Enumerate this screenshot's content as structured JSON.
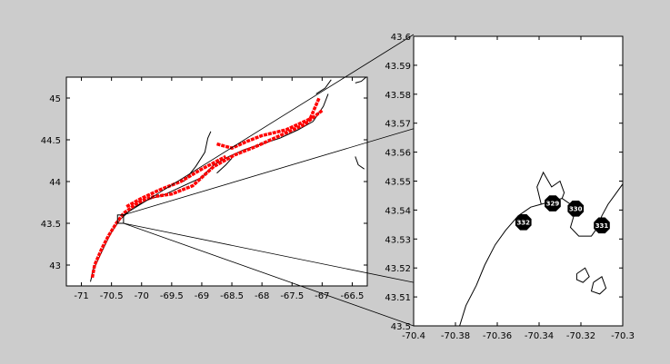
{
  "chart_data": [
    {
      "type": "map",
      "panel": "overview",
      "xlim": [
        -71.25,
        -66.25
      ],
      "ylim": [
        42.75,
        45.25
      ],
      "xticks": [
        -71,
        -70.5,
        -70,
        -69.5,
        -69,
        -68.5,
        -68,
        -67.5,
        -67,
        -66.5
      ],
      "xtick_labels": [
        "-71",
        "-70.5",
        "-70",
        "-69.5",
        "-69",
        "-68.5",
        "-68",
        "-67.5",
        "-67",
        "-66.5"
      ],
      "yticks": [
        43,
        43.5,
        44,
        44.5,
        45
      ],
      "ytick_labels": [
        "43",
        "43.5",
        "44",
        "44.5",
        "45"
      ],
      "grid": false,
      "coastline_color": "#000000",
      "observation_color": "#ff0000",
      "inset_box": {
        "lon": [
          -70.4,
          -70.3
        ],
        "lat": [
          43.5,
          43.6
        ]
      },
      "observation_tracks": [
        [
          [
            -70.82,
            42.85
          ],
          [
            -70.78,
            43.0
          ],
          [
            -70.66,
            43.2
          ],
          [
            -70.55,
            43.35
          ],
          [
            -70.42,
            43.5
          ],
          [
            -70.3,
            43.62
          ],
          [
            -70.05,
            43.75
          ],
          [
            -69.8,
            43.82
          ],
          [
            -69.5,
            43.85
          ],
          [
            -69.15,
            43.95
          ],
          [
            -68.8,
            44.18
          ],
          [
            -68.45,
            44.32
          ],
          [
            -68.1,
            44.42
          ],
          [
            -67.7,
            44.55
          ],
          [
            -67.3,
            44.68
          ],
          [
            -67.0,
            44.85
          ]
        ],
        [
          [
            -70.25,
            43.7
          ],
          [
            -70.0,
            43.8
          ],
          [
            -69.7,
            43.9
          ],
          [
            -69.35,
            44.0
          ],
          [
            -69.0,
            44.15
          ],
          [
            -68.6,
            44.3
          ]
        ],
        [
          [
            -68.75,
            44.45
          ],
          [
            -68.5,
            44.4
          ],
          [
            -68.25,
            44.48
          ],
          [
            -68.0,
            44.55
          ],
          [
            -67.6,
            44.62
          ],
          [
            -67.2,
            44.75
          ],
          [
            -67.05,
            45.0
          ]
        ]
      ],
      "coastline_segments": [
        [
          [
            -70.85,
            42.8
          ],
          [
            -70.8,
            42.95
          ],
          [
            -70.7,
            43.1
          ],
          [
            -70.6,
            43.25
          ],
          [
            -70.5,
            43.4
          ],
          [
            -70.35,
            43.55
          ],
          [
            -70.15,
            43.68
          ],
          [
            -69.9,
            43.78
          ],
          [
            -69.6,
            43.85
          ],
          [
            -69.3,
            43.95
          ],
          [
            -69.0,
            44.05
          ],
          [
            -68.8,
            44.2
          ],
          [
            -68.55,
            44.3
          ],
          [
            -68.3,
            44.38
          ],
          [
            -68.0,
            44.45
          ],
          [
            -67.7,
            44.52
          ],
          [
            -67.4,
            44.62
          ],
          [
            -67.15,
            44.72
          ],
          [
            -66.98,
            44.9
          ],
          [
            -66.9,
            45.05
          ]
        ],
        [
          [
            -69.3,
            44.0
          ],
          [
            -69.1,
            44.18
          ],
          [
            -68.95,
            44.35
          ],
          [
            -68.9,
            44.52
          ],
          [
            -68.85,
            44.6
          ]
        ],
        [
          [
            -68.75,
            44.1
          ],
          [
            -68.6,
            44.2
          ],
          [
            -68.5,
            44.28
          ]
        ],
        [
          [
            -67.1,
            45.05
          ],
          [
            -66.95,
            45.12
          ],
          [
            -66.85,
            45.22
          ]
        ],
        [
          [
            -66.45,
            45.18
          ],
          [
            -66.35,
            45.2
          ],
          [
            -66.27,
            45.25
          ]
        ],
        [
          [
            -66.45,
            44.3
          ],
          [
            -66.4,
            44.2
          ],
          [
            -66.3,
            44.15
          ]
        ]
      ]
    },
    {
      "type": "map",
      "panel": "inset",
      "xlim": [
        -70.4,
        -70.3
      ],
      "ylim": [
        43.5,
        43.6
      ],
      "xticks": [
        -70.4,
        -70.38,
        -70.36,
        -70.34,
        -70.32,
        -70.3
      ],
      "xtick_labels": [
        "-70.4",
        "-70.38",
        "-70.36",
        "-70.34",
        "-70.32",
        "-70.3"
      ],
      "yticks": [
        43.5,
        43.51,
        43.52,
        43.53,
        43.54,
        43.55,
        43.56,
        43.57,
        43.58,
        43.59,
        43.6
      ],
      "ytick_labels": [
        "43.5",
        "43.51",
        "43.52",
        "43.53",
        "43.54",
        "43.55",
        "43.56",
        "43.57",
        "43.58",
        "43.59",
        "43.6"
      ],
      "grid": false,
      "coastline_color": "#000000",
      "station_marker_color": "#000000",
      "stations": [
        {
          "label": "329",
          "lon": -70.3335,
          "lat": 43.5423
        },
        {
          "label": "330",
          "lon": -70.3225,
          "lat": 43.5405
        },
        {
          "label": "331",
          "lon": -70.31,
          "lat": 43.5347
        },
        {
          "label": "332",
          "lon": -70.3475,
          "lat": 43.5358
        }
      ],
      "coastline": [
        [
          -70.378,
          43.5
        ],
        [
          -70.375,
          43.507
        ],
        [
          -70.37,
          43.514
        ],
        [
          -70.366,
          43.521
        ],
        [
          -70.361,
          43.528
        ],
        [
          -70.356,
          43.533
        ],
        [
          -70.35,
          43.538
        ],
        [
          -70.344,
          43.541
        ],
        [
          -70.339,
          43.542
        ],
        [
          -70.334,
          43.543
        ],
        [
          -70.329,
          43.544
        ],
        [
          -70.325,
          43.542
        ],
        [
          -70.323,
          43.539
        ],
        [
          -70.325,
          43.534
        ],
        [
          -70.321,
          43.531
        ],
        [
          -70.315,
          43.531
        ],
        [
          -70.312,
          43.534
        ],
        [
          -70.31,
          43.538
        ],
        [
          -70.307,
          43.542
        ],
        [
          -70.303,
          43.546
        ],
        [
          -70.3,
          43.549
        ]
      ],
      "coastline_extra": [
        [
          [
            -70.339,
            43.542
          ],
          [
            -70.341,
            43.548
          ],
          [
            -70.338,
            43.553
          ],
          [
            -70.334,
            43.548
          ],
          [
            -70.33,
            43.55
          ],
          [
            -70.328,
            43.546
          ],
          [
            -70.329,
            43.544
          ]
        ],
        [
          [
            -70.322,
            43.518
          ],
          [
            -70.318,
            43.52
          ],
          [
            -70.316,
            43.517
          ],
          [
            -70.319,
            43.515
          ],
          [
            -70.322,
            43.516
          ],
          [
            -70.322,
            43.518
          ]
        ],
        [
          [
            -70.314,
            43.515
          ],
          [
            -70.31,
            43.517
          ],
          [
            -70.308,
            43.513
          ],
          [
            -70.311,
            43.511
          ],
          [
            -70.315,
            43.512
          ],
          [
            -70.314,
            43.515
          ]
        ]
      ]
    }
  ]
}
